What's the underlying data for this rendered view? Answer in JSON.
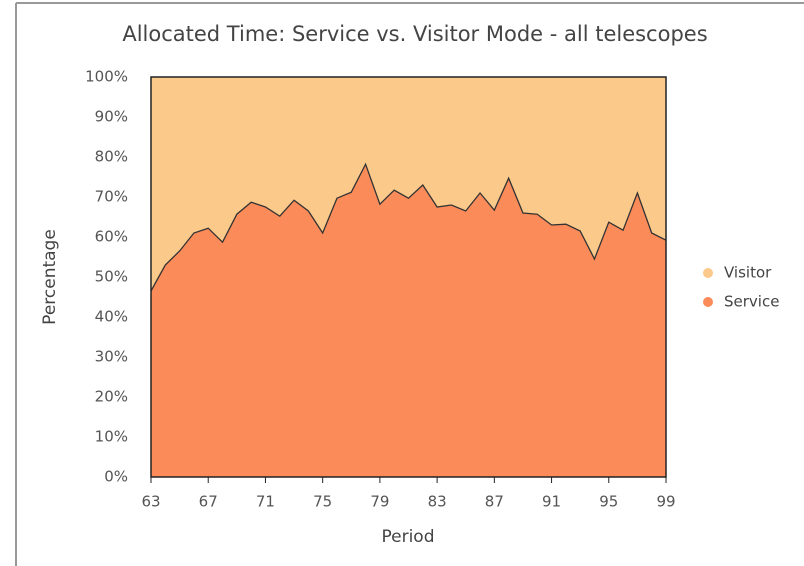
{
  "chart_data": {
    "type": "stacked-area",
    "title": "Allocated Time: Service vs. Visitor Mode - all telescopes",
    "x_label": "Period",
    "y_label": "Percentage",
    "x": [
      63,
      64,
      65,
      66,
      67,
      68,
      69,
      70,
      71,
      72,
      73,
      74,
      75,
      76,
      77,
      78,
      79,
      80,
      81,
      82,
      83,
      84,
      85,
      86,
      87,
      88,
      89,
      90,
      91,
      92,
      93,
      94,
      95,
      96,
      97,
      98,
      99
    ],
    "series": [
      {
        "name": "Service",
        "color": "#fb8c5a",
        "values": [
          46.5,
          53,
          56.5,
          61,
          62.2,
          58.7,
          65.7,
          68.7,
          67.5,
          65.2,
          69.2,
          66.5,
          61,
          69.7,
          71.2,
          78.2,
          68.2,
          71.7,
          69.7,
          73,
          67.5,
          68,
          66.5,
          71,
          66.7,
          74.7,
          66,
          65.7,
          63,
          63.2,
          61.5,
          54.5,
          63.7,
          61.7,
          71,
          61,
          59.2
        ]
      },
      {
        "name": "Visitor",
        "color": "#fbc98a",
        "values": [
          53.5,
          47,
          43.5,
          39,
          37.8,
          41.3,
          34.3,
          31.3,
          32.5,
          34.8,
          30.8,
          33.5,
          39,
          30.3,
          28.8,
          21.8,
          31.8,
          28.3,
          30.3,
          27,
          32.5,
          32,
          33.5,
          29,
          33.3,
          25.3,
          34,
          34.3,
          37,
          36.8,
          38.5,
          45.5,
          36.3,
          38.3,
          29,
          39,
          40.8
        ]
      }
    ],
    "xlim": [
      63,
      99
    ],
    "xticks": [
      63,
      67,
      71,
      75,
      79,
      83,
      87,
      91,
      95,
      99
    ],
    "ylim": [
      0,
      100
    ],
    "yticks": [
      {
        "value": 0,
        "label": "0%"
      },
      {
        "value": 10,
        "label": "10%"
      },
      {
        "value": 20,
        "label": "20%"
      },
      {
        "value": 30,
        "label": "30%"
      },
      {
        "value": 40,
        "label": "40%"
      },
      {
        "value": 50,
        "label": "50%"
      },
      {
        "value": 60,
        "label": "60%"
      },
      {
        "value": 70,
        "label": "70%"
      },
      {
        "value": 80,
        "label": "80%"
      },
      {
        "value": 90,
        "label": "90%"
      },
      {
        "value": 100,
        "label": "100%"
      }
    ],
    "grid": false,
    "legend": "right"
  }
}
